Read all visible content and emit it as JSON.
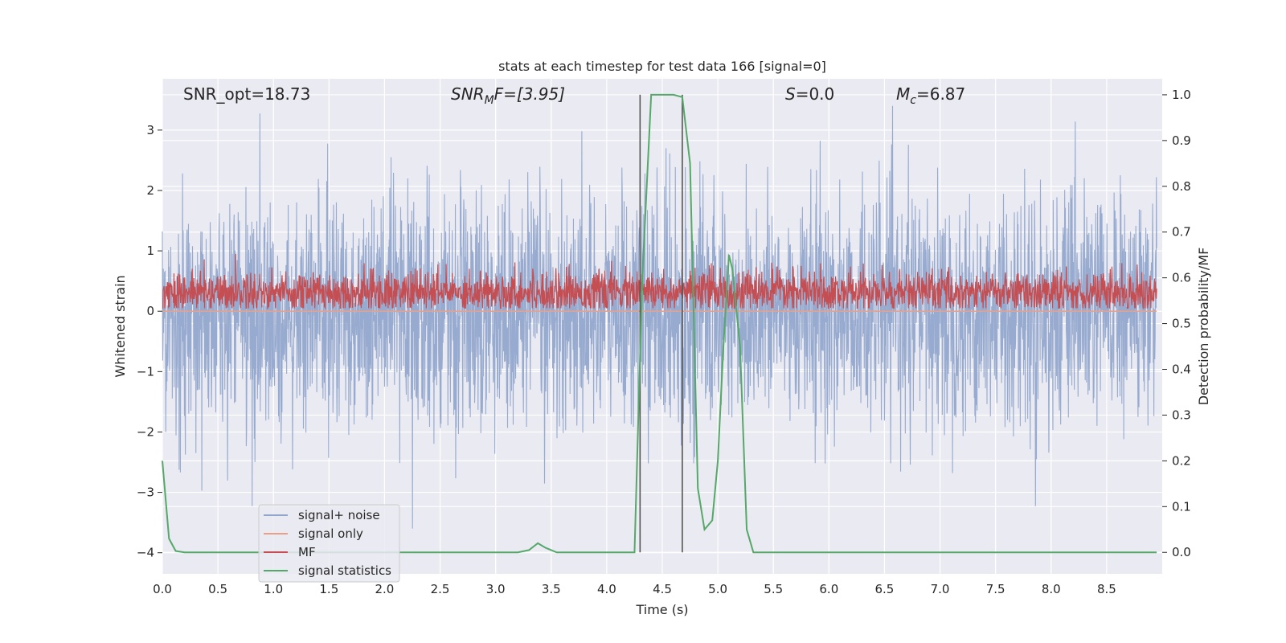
{
  "chart_data": {
    "type": "line",
    "title": "stats at each timestep for test data 166 [signal=0]",
    "xlabel": "Time (s)",
    "ylabel": "Whitened strain",
    "y2label": "Detection probability/MF",
    "xlim": [
      0.0,
      9.0
    ],
    "ylim": [
      -4.35,
      3.85
    ],
    "y2lim": [
      -0.047,
      1.035
    ],
    "xticks": [
      "0.0",
      "0.5",
      "1.0",
      "1.5",
      "2.0",
      "2.5",
      "3.0",
      "3.5",
      "4.0",
      "4.5",
      "5.0",
      "5.5",
      "6.0",
      "6.5",
      "7.0",
      "7.5",
      "8.0",
      "8.5"
    ],
    "yticks": [
      "−4",
      "−3",
      "−2",
      "−1",
      "0",
      "1",
      "2",
      "3"
    ],
    "y2ticks": [
      "0.0",
      "0.1",
      "0.2",
      "0.3",
      "0.4",
      "0.5",
      "0.6",
      "0.7",
      "0.8",
      "0.9",
      "1.0"
    ],
    "grid": true,
    "legend_position": "lower-left",
    "annotations": {
      "snr_opt": "SNR_opt=18.73",
      "snr_mf_base": "SNR",
      "snr_mf_sub": "M",
      "snr_mf_rest": "F=[3.95]",
      "s_base": "S",
      "s_rest": "=0.0",
      "mc_base": "M",
      "mc_sub": "c",
      "mc_rest": "=6.87"
    },
    "series": [
      {
        "name": "signal+ noise",
        "color": "#92a6cc",
        "axis": "left",
        "description_values": "white noise, amplitude ~[-3.6, 3.4]"
      },
      {
        "name": "signal only",
        "color": "#e8a088",
        "axis": "left",
        "values_constant": 0.0
      },
      {
        "name": "MF",
        "color": "#c44e52",
        "axis": "left",
        "band": [
          0.05,
          0.95
        ]
      },
      {
        "name": "signal statistics",
        "color": "#55a868",
        "axis": "right",
        "x": [
          0.0,
          0.06,
          0.12,
          0.2,
          0.3,
          1.0,
          2.0,
          3.0,
          3.2,
          3.3,
          3.38,
          3.45,
          3.55,
          4.0,
          4.25,
          4.32,
          4.4,
          4.47,
          4.55,
          4.6,
          4.68,
          4.75,
          4.82,
          4.88,
          4.95,
          5.0,
          5.05,
          5.1,
          5.13,
          5.2,
          5.26,
          5.32,
          5.5,
          6.0,
          7.0,
          8.0,
          8.95
        ],
        "y": [
          0.2,
          0.03,
          0.003,
          0.0,
          0.0,
          0.0,
          0.0,
          0.0,
          0.0,
          0.005,
          0.02,
          0.01,
          0.0,
          0.0,
          0.0,
          0.6,
          1.0,
          1.0,
          1.0,
          1.0,
          0.995,
          0.85,
          0.14,
          0.05,
          0.07,
          0.2,
          0.45,
          0.65,
          0.62,
          0.45,
          0.05,
          0.0,
          0.0,
          0.0,
          0.0,
          0.0,
          0.0
        ]
      },
      {
        "name": "marker lines",
        "color": "#555555",
        "axis": "right",
        "x": [
          4.3,
          4.68
        ],
        "range": [
          0.0,
          1.0
        ]
      }
    ]
  },
  "legend": {
    "items": [
      "signal+ noise",
      "signal only",
      "MF",
      "signal statistics"
    ]
  }
}
